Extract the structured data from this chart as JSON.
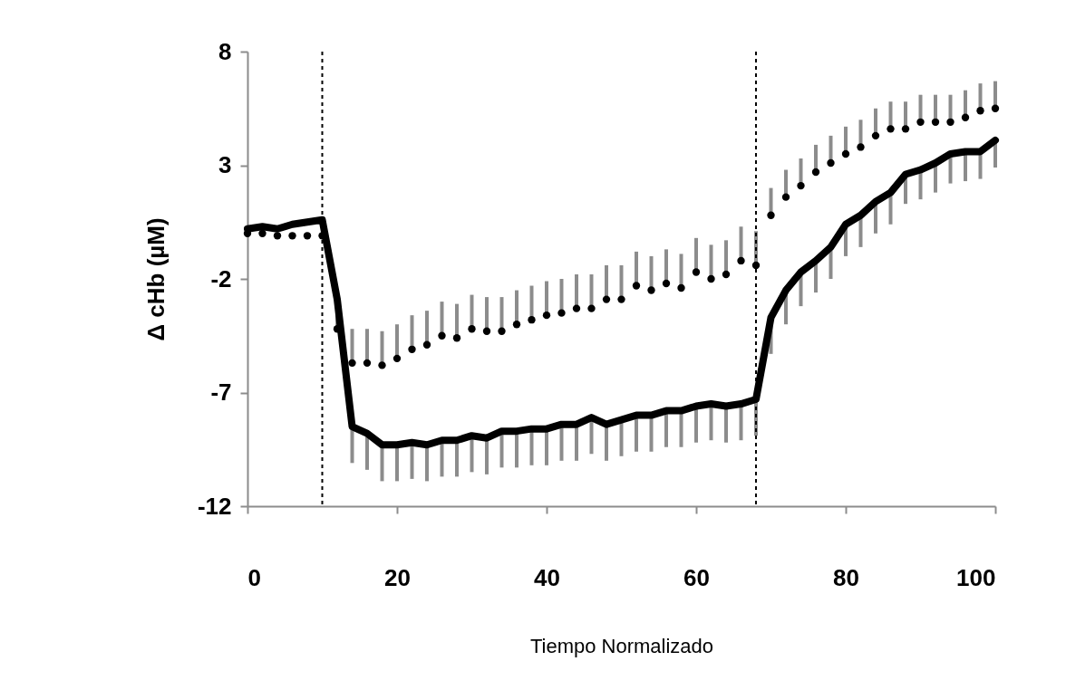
{
  "chart_data": {
    "type": "line",
    "xlabel": "Tiempo Normalizado",
    "ylabel": "Δ cHb (µM)",
    "x": [
      0,
      2,
      4,
      6,
      8,
      10,
      12,
      14,
      16,
      18,
      20,
      22,
      24,
      26,
      28,
      30,
      32,
      34,
      36,
      38,
      40,
      42,
      44,
      46,
      48,
      50,
      52,
      54,
      56,
      58,
      60,
      62,
      64,
      66,
      68,
      70,
      72,
      74,
      76,
      78,
      80,
      82,
      84,
      86,
      88,
      90,
      92,
      94,
      96,
      98,
      100
    ],
    "series": [
      {
        "type": "line",
        "color": "#000000",
        "marker": "none",
        "values": [
          0.2,
          0.3,
          0.2,
          0.4,
          0.5,
          0.6,
          -2.9,
          -8.5,
          -8.8,
          -9.3,
          -9.3,
          -9.2,
          -9.3,
          -9.1,
          -9.1,
          -8.9,
          -9.0,
          -8.7,
          -8.7,
          -8.6,
          -8.6,
          -8.4,
          -8.4,
          -8.1,
          -8.4,
          -8.2,
          -8.0,
          -8.0,
          -7.8,
          -7.8,
          -7.6,
          -7.5,
          -7.6,
          -7.5,
          -7.3,
          -3.7,
          -2.5,
          -1.7,
          -1.2,
          -0.6,
          0.4,
          0.8,
          1.4,
          1.8,
          2.6,
          2.8,
          3.1,
          3.5,
          3.6,
          3.6,
          4.1
        ],
        "errors": [
          null,
          null,
          null,
          null,
          null,
          null,
          [
            -3.9,
            -2.9
          ],
          [
            -10.1,
            -8.5
          ],
          [
            -10.4,
            -8.8
          ],
          [
            -10.9,
            -9.3
          ],
          [
            -10.9,
            -9.3
          ],
          [
            -10.8,
            -9.2
          ],
          [
            -10.9,
            -9.3
          ],
          [
            -10.7,
            -9.1
          ],
          [
            -10.7,
            -9.1
          ],
          [
            -10.5,
            -8.9
          ],
          [
            -10.6,
            -9.0
          ],
          [
            -10.3,
            -8.7
          ],
          [
            -10.3,
            -8.7
          ],
          [
            -10.2,
            -8.6
          ],
          [
            -10.2,
            -8.6
          ],
          [
            -10.0,
            -8.4
          ],
          [
            -10.0,
            -8.4
          ],
          [
            -9.7,
            -8.1
          ],
          [
            -10.0,
            -8.4
          ],
          [
            -9.8,
            -8.2
          ],
          [
            -9.6,
            -8.0
          ],
          [
            -9.6,
            -8.0
          ],
          [
            -9.4,
            -7.8
          ],
          [
            -9.4,
            -7.8
          ],
          [
            -9.2,
            -7.6
          ],
          [
            -9.1,
            -7.5
          ],
          [
            -9.2,
            -7.6
          ],
          [
            -9.1,
            -7.5
          ],
          [
            -8.9,
            -7.3
          ],
          [
            -5.3,
            -3.7
          ],
          [
            -4.0,
            -2.5
          ],
          [
            -3.2,
            -1.7
          ],
          [
            -2.6,
            -1.2
          ],
          [
            -2.0,
            -0.6
          ],
          [
            -1.0,
            0.4
          ],
          [
            -0.6,
            0.8
          ],
          [
            0.0,
            1.4
          ],
          [
            0.4,
            1.8
          ],
          [
            1.3,
            2.6
          ],
          [
            1.5,
            2.8
          ],
          [
            1.8,
            3.1
          ],
          [
            2.2,
            3.5
          ],
          [
            2.3,
            3.6
          ],
          [
            2.4,
            3.6
          ],
          [
            2.9,
            4.1
          ]
        ]
      },
      {
        "type": "scatter",
        "color": "#000000",
        "marker": "circle",
        "values": [
          0.0,
          0.0,
          -0.1,
          -0.1,
          -0.1,
          -0.1,
          -4.2,
          -5.7,
          -5.7,
          -5.8,
          -5.5,
          -5.1,
          -4.9,
          -4.5,
          -4.6,
          -4.2,
          -4.3,
          -4.3,
          -4.0,
          -3.8,
          -3.6,
          -3.5,
          -3.3,
          -3.3,
          -2.9,
          -2.9,
          -2.3,
          -2.5,
          -2.2,
          -2.4,
          -1.7,
          -2.0,
          -1.8,
          -1.2,
          -1.4,
          0.8,
          1.6,
          2.1,
          2.7,
          3.1,
          3.5,
          3.8,
          4.3,
          4.6,
          4.6,
          4.9,
          4.9,
          4.9,
          5.1,
          5.4,
          5.5
        ],
        "errors": [
          null,
          null,
          null,
          null,
          null,
          null,
          [
            -4.2,
            -2.7
          ],
          [
            -5.7,
            -4.2
          ],
          [
            -5.7,
            -4.2
          ],
          [
            -5.8,
            -4.3
          ],
          [
            -5.5,
            -4.0
          ],
          [
            -5.1,
            -3.6
          ],
          [
            -4.9,
            -3.4
          ],
          [
            -4.5,
            -3.0
          ],
          [
            -4.6,
            -3.1
          ],
          [
            -4.2,
            -2.7
          ],
          [
            -4.3,
            -2.8
          ],
          [
            -4.3,
            -2.8
          ],
          [
            -4.0,
            -2.5
          ],
          [
            -3.8,
            -2.3
          ],
          [
            -3.6,
            -2.1
          ],
          [
            -3.5,
            -2.0
          ],
          [
            -3.3,
            -1.8
          ],
          [
            -3.3,
            -1.8
          ],
          [
            -2.9,
            -1.4
          ],
          [
            -2.9,
            -1.4
          ],
          [
            -2.3,
            -0.8
          ],
          [
            -2.5,
            -1.0
          ],
          [
            -2.2,
            -0.7
          ],
          [
            -2.4,
            -0.9
          ],
          [
            -1.7,
            -0.2
          ],
          [
            -2.0,
            -0.5
          ],
          [
            -1.8,
            -0.3
          ],
          [
            -1.2,
            0.3
          ],
          [
            -1.4,
            0.1
          ],
          [
            0.8,
            2.0
          ],
          [
            1.6,
            2.8
          ],
          [
            2.1,
            3.3
          ],
          [
            2.7,
            3.9
          ],
          [
            3.1,
            4.3
          ],
          [
            3.5,
            4.7
          ],
          [
            3.8,
            5.0
          ],
          [
            4.3,
            5.5
          ],
          [
            4.6,
            5.8
          ],
          [
            4.6,
            5.8
          ],
          [
            4.9,
            6.1
          ],
          [
            4.9,
            6.1
          ],
          [
            4.9,
            6.1
          ],
          [
            5.1,
            6.3
          ],
          [
            5.4,
            6.6
          ],
          [
            5.5,
            6.7
          ]
        ]
      }
    ],
    "ref_lines": [
      {
        "axis": "x",
        "value": 10,
        "color": "#000000",
        "line_style": "dashed"
      },
      {
        "axis": "x",
        "value": 68,
        "color": "#000000",
        "line_style": "dashed"
      }
    ],
    "xlim": [
      0,
      100
    ],
    "xticks": [
      0,
      20,
      40,
      60,
      80,
      100
    ],
    "ylim": [
      -12,
      8
    ],
    "yticks": [
      -12,
      -7,
      -2,
      3,
      8
    ],
    "grid": false
  }
}
